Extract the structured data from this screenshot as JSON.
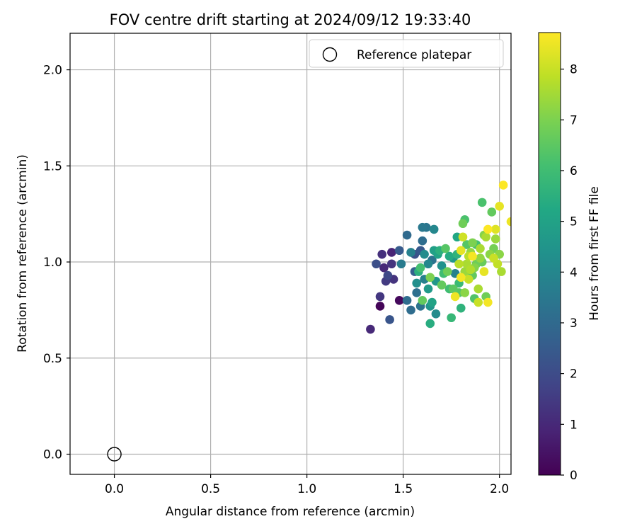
{
  "chart_data": {
    "type": "scatter",
    "title": "FOV centre drift starting at 2024/09/12 19:33:40",
    "xlabel": "Angular distance from reference (arcmin)",
    "ylabel": "Rotation from reference (arcmin)",
    "xlim": [
      -0.23,
      2.06
    ],
    "ylim": [
      -0.105,
      2.19
    ],
    "xticks": [
      "0.0",
      "0.5",
      "1.0",
      "1.5",
      "2.0"
    ],
    "yticks": [
      "0.0",
      "0.5",
      "1.0",
      "1.5",
      "2.0"
    ],
    "grid": true,
    "legend": {
      "position": "top-right",
      "entries": [
        "Reference platepar"
      ]
    },
    "colorbar": {
      "label": "Hours from first FF file",
      "colormap": "viridis",
      "range": [
        0,
        8.72
      ],
      "ticks": [
        "0",
        "1",
        "2",
        "3",
        "4",
        "5",
        "6",
        "7",
        "8"
      ]
    },
    "reference_point": {
      "x": 0.0,
      "y": 0.0
    },
    "series": [
      {
        "points": [
          {
            "x": 1.33,
            "y": 0.65,
            "c": 1.0
          },
          {
            "x": 1.38,
            "y": 0.77,
            "c": 0.1
          },
          {
            "x": 1.38,
            "y": 0.82,
            "c": 1.4
          },
          {
            "x": 1.43,
            "y": 0.7,
            "c": 2.3
          },
          {
            "x": 1.48,
            "y": 0.8,
            "c": 0.2
          },
          {
            "x": 1.36,
            "y": 0.99,
            "c": 2.1
          },
          {
            "x": 1.39,
            "y": 1.04,
            "c": 1.2
          },
          {
            "x": 1.4,
            "y": 0.97,
            "c": 1.0
          },
          {
            "x": 1.41,
            "y": 0.9,
            "c": 1.5
          },
          {
            "x": 1.42,
            "y": 0.93,
            "c": 1.9
          },
          {
            "x": 1.44,
            "y": 0.99,
            "c": 1.3
          },
          {
            "x": 1.44,
            "y": 1.05,
            "c": 0.9
          },
          {
            "x": 1.45,
            "y": 0.91,
            "c": 1.3
          },
          {
            "x": 1.48,
            "y": 1.06,
            "c": 2.5
          },
          {
            "x": 1.49,
            "y": 0.99,
            "c": 3.6
          },
          {
            "x": 1.52,
            "y": 1.14,
            "c": 3.0
          },
          {
            "x": 1.52,
            "y": 0.8,
            "c": 3.1
          },
          {
            "x": 1.54,
            "y": 0.75,
            "c": 3.1
          },
          {
            "x": 1.54,
            "y": 1.05,
            "c": 3.8
          },
          {
            "x": 1.56,
            "y": 1.04,
            "c": 2.2
          },
          {
            "x": 1.56,
            "y": 0.95,
            "c": 2.7
          },
          {
            "x": 1.57,
            "y": 0.89,
            "c": 4.3
          },
          {
            "x": 1.57,
            "y": 0.84,
            "c": 3.2
          },
          {
            "x": 1.58,
            "y": 0.95,
            "c": 5.5
          },
          {
            "x": 1.59,
            "y": 0.97,
            "c": 6.1
          },
          {
            "x": 1.59,
            "y": 1.06,
            "c": 2.4
          },
          {
            "x": 1.59,
            "y": 0.77,
            "c": 3.3
          },
          {
            "x": 1.6,
            "y": 0.8,
            "c": 6.6
          },
          {
            "x": 1.6,
            "y": 1.18,
            "c": 3.5
          },
          {
            "x": 1.6,
            "y": 1.11,
            "c": 3.1
          },
          {
            "x": 1.61,
            "y": 0.91,
            "c": 3.8
          },
          {
            "x": 1.61,
            "y": 1.04,
            "c": 4.2
          },
          {
            "x": 1.62,
            "y": 1.18,
            "c": 3.4
          },
          {
            "x": 1.63,
            "y": 0.86,
            "c": 4.7
          },
          {
            "x": 1.63,
            "y": 0.99,
            "c": 4.0
          },
          {
            "x": 1.64,
            "y": 0.68,
            "c": 5.4
          },
          {
            "x": 1.64,
            "y": 0.77,
            "c": 4.5
          },
          {
            "x": 1.64,
            "y": 0.92,
            "c": 7.0
          },
          {
            "x": 1.65,
            "y": 0.79,
            "c": 5.0
          },
          {
            "x": 1.65,
            "y": 1.01,
            "c": 3.3
          },
          {
            "x": 1.66,
            "y": 1.17,
            "c": 4.0
          },
          {
            "x": 1.66,
            "y": 1.06,
            "c": 4.9
          },
          {
            "x": 1.67,
            "y": 0.9,
            "c": 4.6
          },
          {
            "x": 1.67,
            "y": 0.73,
            "c": 4.2
          },
          {
            "x": 1.68,
            "y": 1.04,
            "c": 5.0
          },
          {
            "x": 1.69,
            "y": 1.06,
            "c": 5.5
          },
          {
            "x": 1.7,
            "y": 0.98,
            "c": 4.4
          },
          {
            "x": 1.71,
            "y": 0.94,
            "c": 6.0
          },
          {
            "x": 1.72,
            "y": 1.07,
            "c": 6.4
          },
          {
            "x": 1.73,
            "y": 0.95,
            "c": 6.8
          },
          {
            "x": 1.74,
            "y": 0.86,
            "c": 6.0
          },
          {
            "x": 1.75,
            "y": 0.71,
            "c": 5.8
          },
          {
            "x": 1.76,
            "y": 1.02,
            "c": 4.6
          },
          {
            "x": 1.76,
            "y": 0.86,
            "c": 6.5
          },
          {
            "x": 1.77,
            "y": 0.94,
            "c": 3.8
          },
          {
            "x": 1.77,
            "y": 0.82,
            "c": 8.5
          },
          {
            "x": 1.78,
            "y": 1.04,
            "c": 5.6
          },
          {
            "x": 1.78,
            "y": 1.13,
            "c": 5.2
          },
          {
            "x": 1.79,
            "y": 0.99,
            "c": 7.8
          },
          {
            "x": 1.79,
            "y": 0.84,
            "c": 6.4
          },
          {
            "x": 1.8,
            "y": 0.76,
            "c": 5.6
          },
          {
            "x": 1.8,
            "y": 1.06,
            "c": 8.4
          },
          {
            "x": 1.8,
            "y": 0.92,
            "c": 8.6
          },
          {
            "x": 1.81,
            "y": 1.13,
            "c": 8.1
          },
          {
            "x": 1.81,
            "y": 1.2,
            "c": 6.8
          },
          {
            "x": 1.82,
            "y": 0.95,
            "c": 7.4
          },
          {
            "x": 1.82,
            "y": 0.84,
            "c": 7.2
          },
          {
            "x": 1.82,
            "y": 1.22,
            "c": 6.2
          },
          {
            "x": 1.83,
            "y": 1.09,
            "c": 6.4
          },
          {
            "x": 1.83,
            "y": 0.99,
            "c": 7.6
          },
          {
            "x": 1.84,
            "y": 0.91,
            "c": 8.0
          },
          {
            "x": 1.84,
            "y": 1.03,
            "c": 7.8
          },
          {
            "x": 1.85,
            "y": 1.05,
            "c": 7.3
          },
          {
            "x": 1.85,
            "y": 0.96,
            "c": 7.7
          },
          {
            "x": 1.86,
            "y": 1.1,
            "c": 7.0
          },
          {
            "x": 1.86,
            "y": 0.93,
            "c": 6.6
          },
          {
            "x": 1.87,
            "y": 0.81,
            "c": 6.3
          },
          {
            "x": 1.87,
            "y": 0.97,
            "c": 7.1
          },
          {
            "x": 1.88,
            "y": 1.09,
            "c": 6.1
          },
          {
            "x": 1.88,
            "y": 0.99,
            "c": 6.8
          },
          {
            "x": 1.89,
            "y": 0.86,
            "c": 7.6
          },
          {
            "x": 1.89,
            "y": 0.79,
            "c": 8.0
          },
          {
            "x": 1.9,
            "y": 1.02,
            "c": 7.3
          },
          {
            "x": 1.9,
            "y": 1.07,
            "c": 7.6
          },
          {
            "x": 1.91,
            "y": 1.31,
            "c": 6.2
          },
          {
            "x": 1.91,
            "y": 1.0,
            "c": 6.7
          },
          {
            "x": 1.92,
            "y": 0.95,
            "c": 8.4
          },
          {
            "x": 1.92,
            "y": 1.14,
            "c": 7.1
          },
          {
            "x": 1.93,
            "y": 0.82,
            "c": 6.8
          },
          {
            "x": 1.93,
            "y": 1.13,
            "c": 7.6
          },
          {
            "x": 1.94,
            "y": 0.79,
            "c": 8.6
          },
          {
            "x": 1.94,
            "y": 1.17,
            "c": 8.7
          },
          {
            "x": 1.95,
            "y": 1.04,
            "c": 7.2
          },
          {
            "x": 1.96,
            "y": 1.26,
            "c": 6.6
          },
          {
            "x": 1.97,
            "y": 1.02,
            "c": 8.0
          },
          {
            "x": 1.97,
            "y": 1.07,
            "c": 6.9
          },
          {
            "x": 1.98,
            "y": 1.12,
            "c": 7.4
          },
          {
            "x": 1.98,
            "y": 1.17,
            "c": 8.3
          },
          {
            "x": 1.99,
            "y": 0.99,
            "c": 7.9
          },
          {
            "x": 2.0,
            "y": 1.04,
            "c": 7.2
          },
          {
            "x": 2.0,
            "y": 1.29,
            "c": 8.4
          },
          {
            "x": 2.01,
            "y": 0.95,
            "c": 7.6
          },
          {
            "x": 2.02,
            "y": 1.4,
            "c": 8.7
          },
          {
            "x": 2.06,
            "y": 1.21,
            "c": 8.5
          },
          {
            "x": 1.79,
            "y": 0.89,
            "c": 5.9
          },
          {
            "x": 1.74,
            "y": 1.03,
            "c": 5.3
          },
          {
            "x": 1.7,
            "y": 0.88,
            "c": 6.6
          },
          {
            "x": 1.86,
            "y": 1.03,
            "c": 8.6
          }
        ]
      }
    ]
  },
  "colors": {
    "axis": "#000000",
    "grid": "#b0b0b0",
    "legend_border": "#cccccc"
  }
}
